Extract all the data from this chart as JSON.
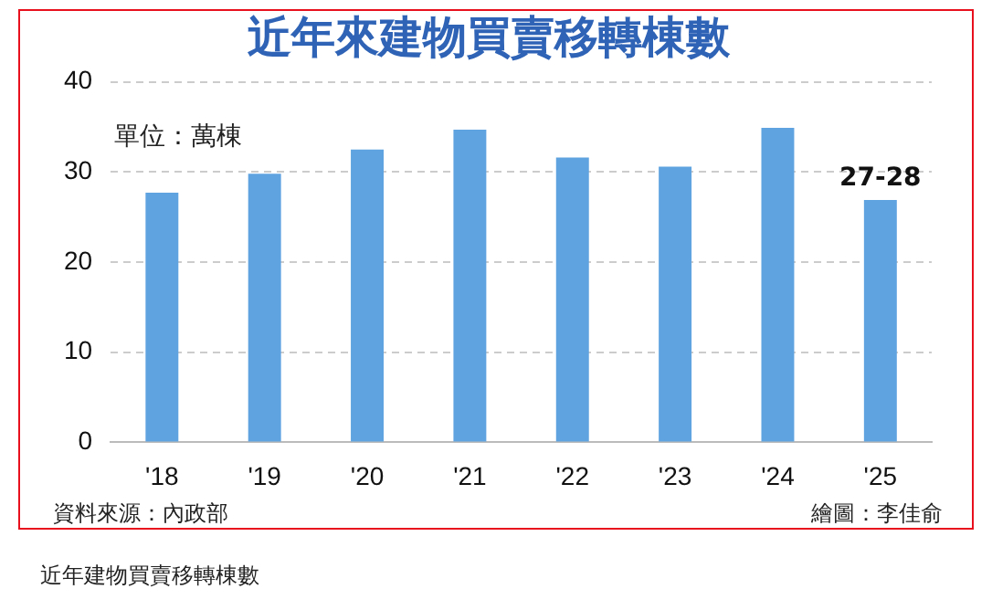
{
  "chart_data": {
    "type": "bar",
    "title": "近年來建物買賣移轉棟數",
    "categories": [
      "'18",
      "'19",
      "'20",
      "'21",
      "'22",
      "'23",
      "'24",
      "'25"
    ],
    "values": [
      27.7,
      29.8,
      32.5,
      34.7,
      31.6,
      30.6,
      34.9,
      26.9
    ],
    "value_labels": [
      null,
      null,
      null,
      null,
      null,
      null,
      null,
      "27-28"
    ],
    "color": "#5fa3e0",
    "ylim": [
      0,
      40
    ],
    "yticks": [
      0,
      10,
      20,
      30,
      40
    ],
    "grid": "y",
    "legend": false,
    "annotations": [
      "單位：萬棟",
      "資料來源：內政部",
      "繪圖：李佳俞",
      "近年建物買賣移轉棟數"
    ]
  }
}
